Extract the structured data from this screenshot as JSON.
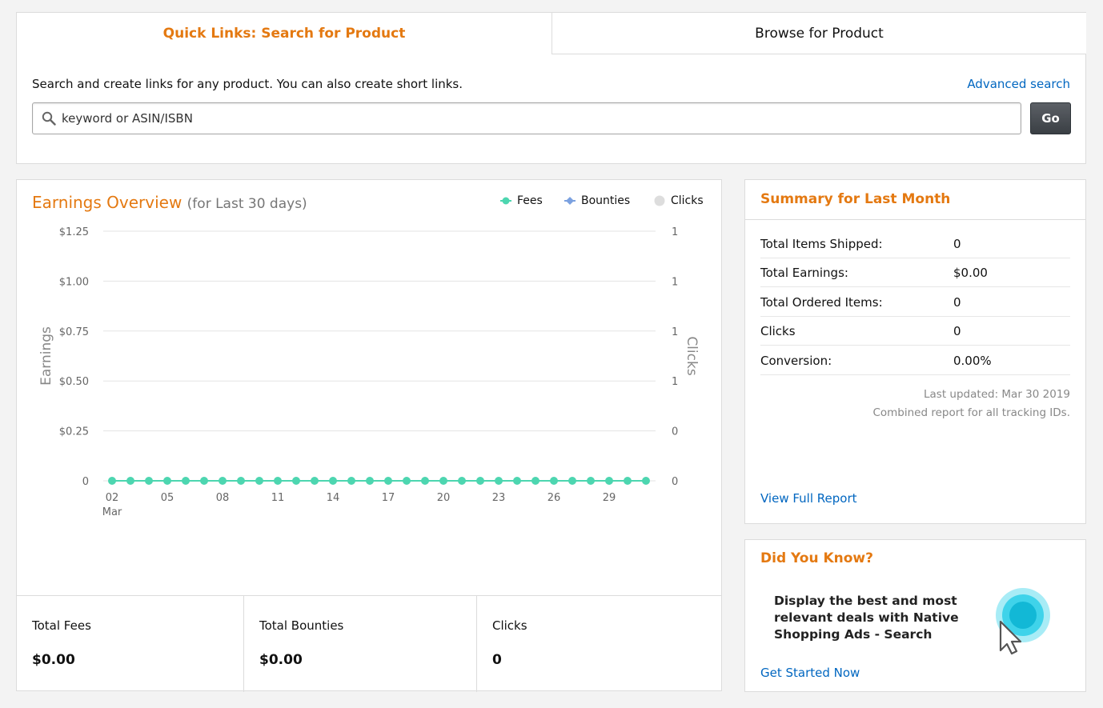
{
  "quick_links": {
    "tab_search": "Quick Links: Search for Product",
    "tab_browse": "Browse for Product",
    "description": "Search and create links for any product. You can also create short links.",
    "advanced_search": "Advanced search",
    "search_placeholder": "keyword or ASIN/ISBN",
    "go_label": "Go"
  },
  "earnings": {
    "title": "Earnings Overview",
    "subtitle": "(for Last 30 days)",
    "stats": [
      {
        "label": "Total Fees",
        "value": "$0.00"
      },
      {
        "label": "Total Bounties",
        "value": "$0.00"
      },
      {
        "label": "Clicks",
        "value": "0"
      }
    ]
  },
  "chart_data": {
    "type": "line",
    "ylabel": "Earnings",
    "y2label": "Clicks",
    "legend": [
      {
        "name": "Fees",
        "color": "#4dd6b0"
      },
      {
        "name": "Bounties",
        "color": "#7ba1e0"
      },
      {
        "name": "Clicks",
        "color": "#dddddd"
      }
    ],
    "legend_placement": "top-right",
    "y_ticks": [
      "$1.25",
      "$1.00",
      "$0.75",
      "$0.50",
      "$0.25",
      "0"
    ],
    "y2_ticks": [
      "1",
      "1",
      "1",
      "1",
      "0",
      "0"
    ],
    "ylim": [
      0,
      1.25
    ],
    "x_tick_labels": [
      "02",
      "05",
      "08",
      "11",
      "14",
      "17",
      "20",
      "23",
      "26",
      "29"
    ],
    "x_tick_days": [
      2,
      5,
      8,
      11,
      14,
      17,
      20,
      23,
      26,
      29
    ],
    "x_month_label": "Mar",
    "x_days": [
      2,
      3,
      4,
      5,
      6,
      7,
      8,
      9,
      10,
      11,
      12,
      13,
      14,
      15,
      16,
      17,
      18,
      19,
      20,
      21,
      22,
      23,
      24,
      25,
      26,
      27,
      28,
      29,
      30,
      31
    ],
    "series": [
      {
        "name": "Fees",
        "color": "#4dd6b0",
        "values": [
          0,
          0,
          0,
          0,
          0,
          0,
          0,
          0,
          0,
          0,
          0,
          0,
          0,
          0,
          0,
          0,
          0,
          0,
          0,
          0,
          0,
          0,
          0,
          0,
          0,
          0,
          0,
          0,
          0,
          0
        ]
      }
    ],
    "grid": true
  },
  "summary": {
    "title": "Summary for Last Month",
    "rows": [
      {
        "label": "Total Items Shipped:",
        "value": "0"
      },
      {
        "label": "Total Earnings:",
        "value": "$0.00"
      },
      {
        "label": "Total Ordered Items:",
        "value": "0"
      },
      {
        "label": "Clicks",
        "value": "0"
      },
      {
        "label": "Conversion:",
        "value": "0.00%"
      }
    ],
    "last_updated": "Last updated: Mar 30 2019",
    "combined_note": "Combined report for all tracking IDs.",
    "full_report": "View Full Report"
  },
  "did_you_know": {
    "title": "Did You Know?",
    "text": "Display the best and most relevant deals with Native Shopping Ads - Search",
    "link": "Get Started Now"
  },
  "colors": {
    "accent": "#e47911",
    "link": "#0066c0"
  }
}
